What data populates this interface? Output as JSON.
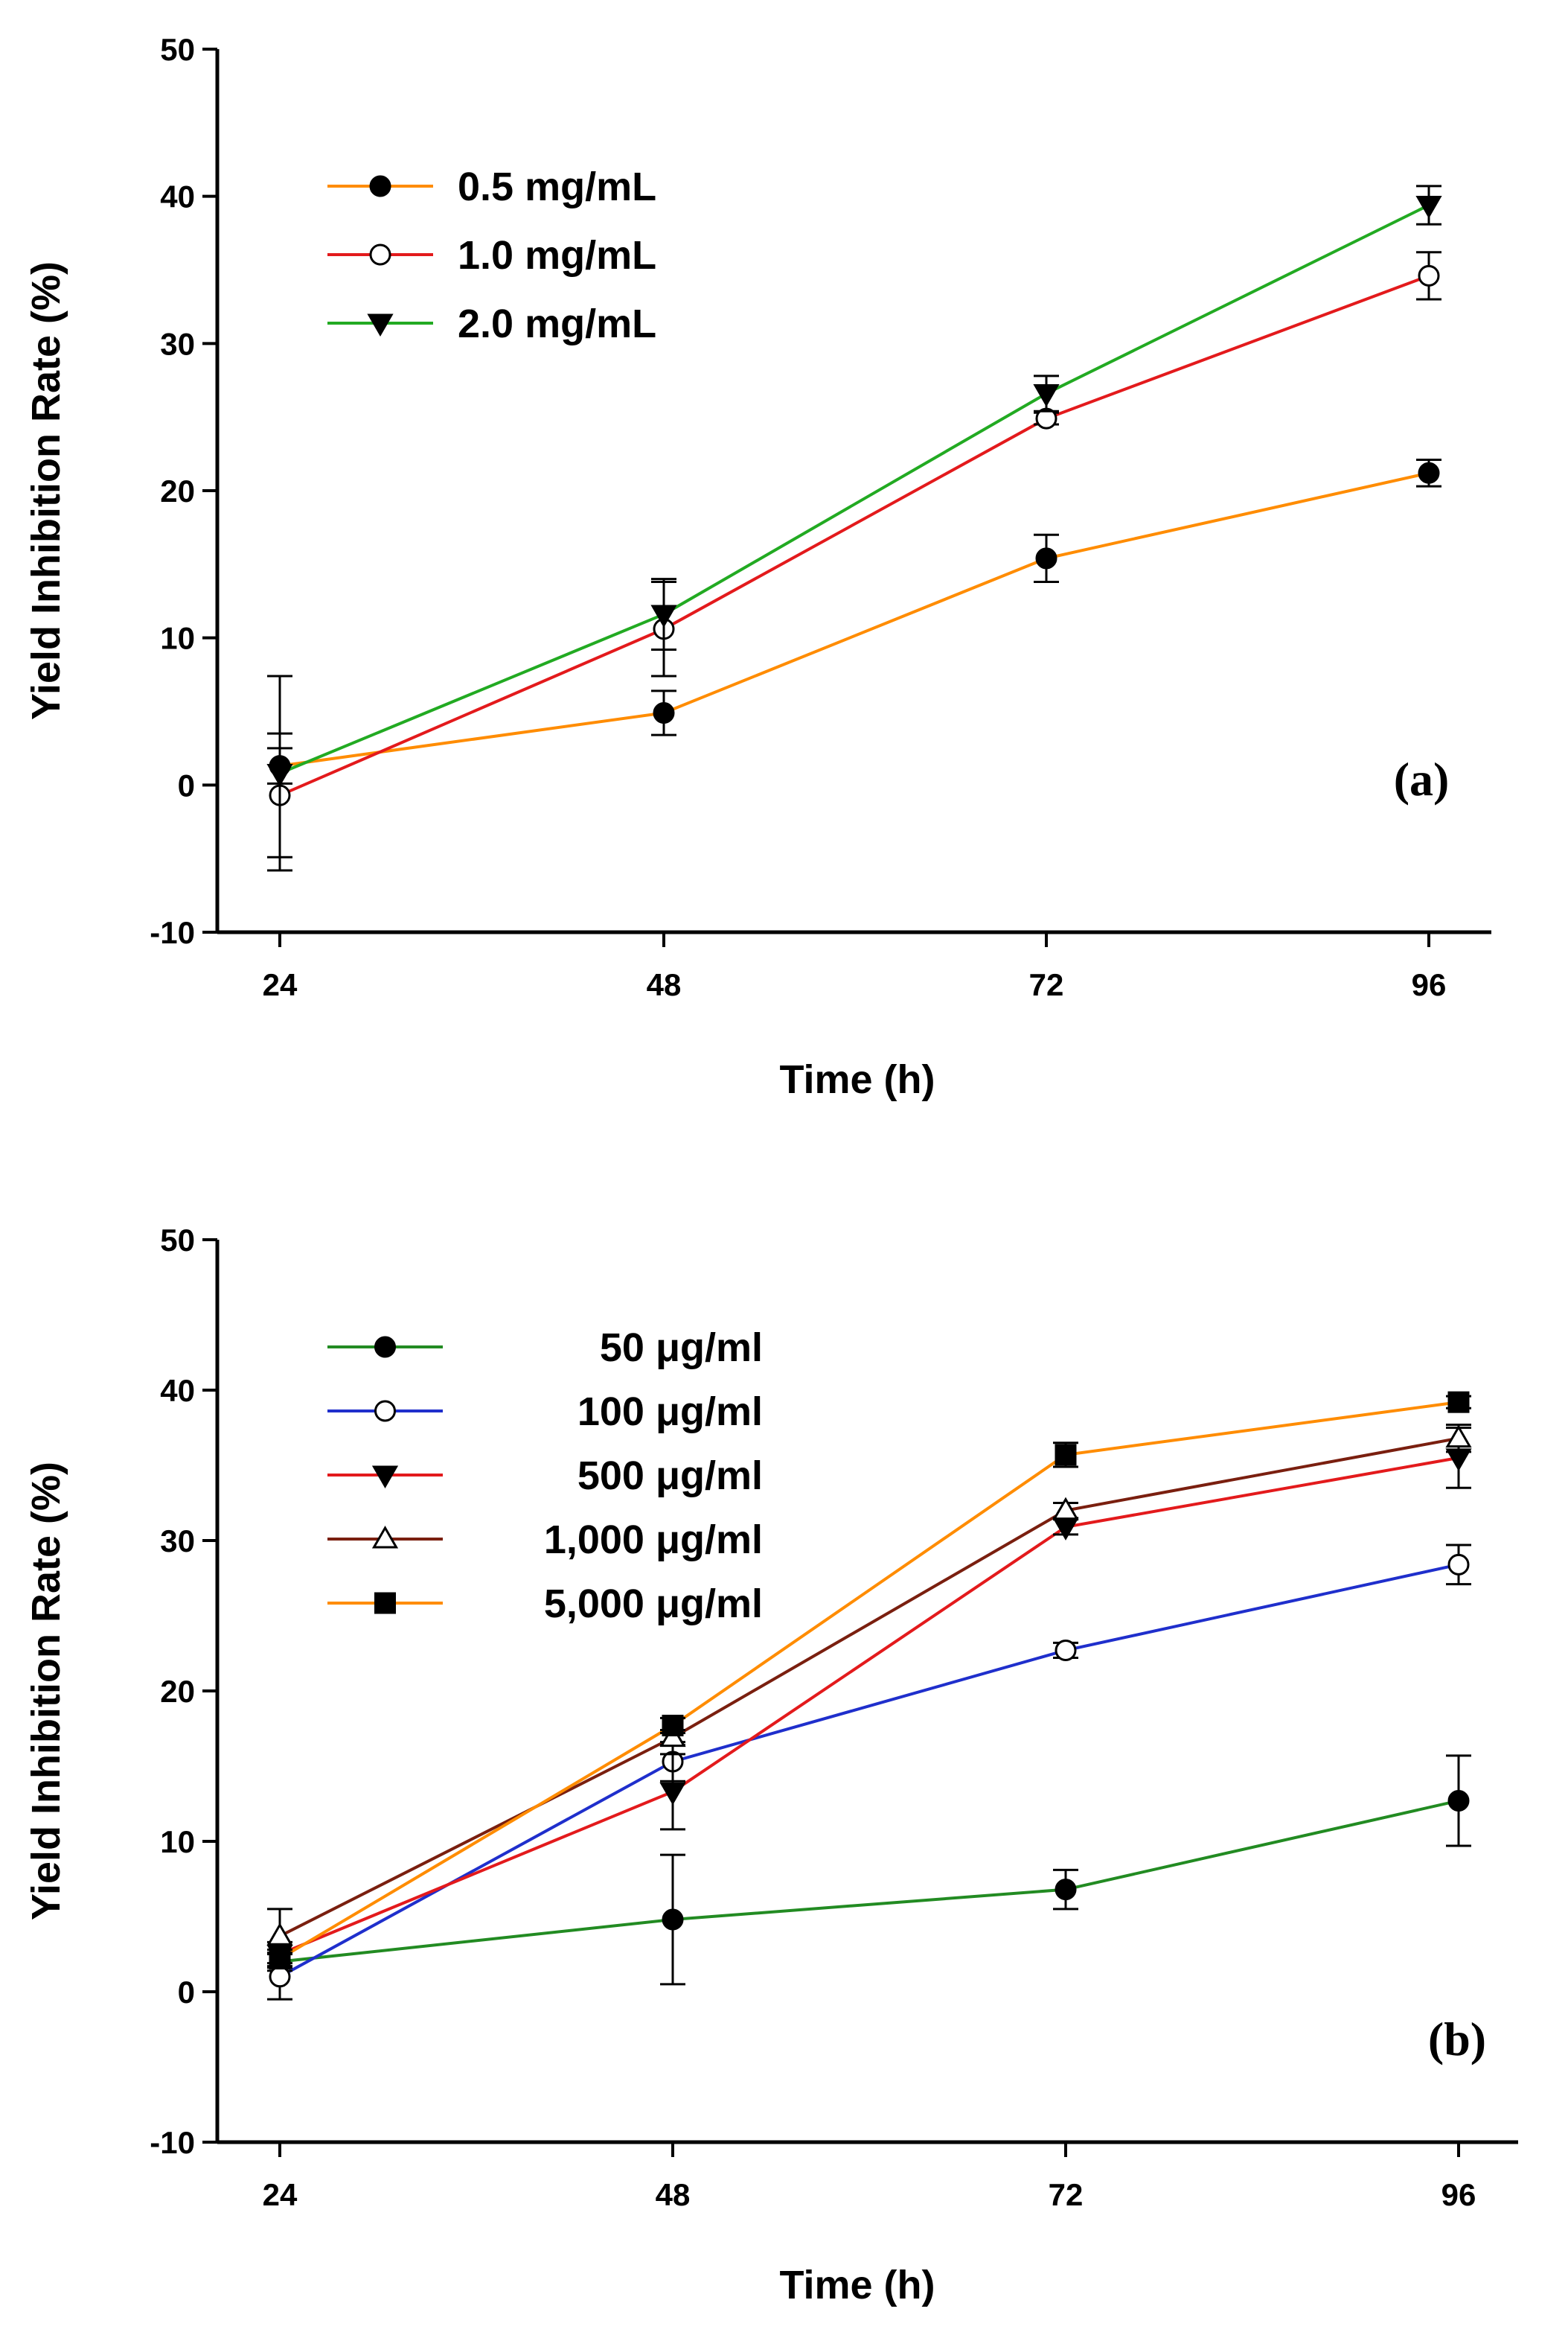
{
  "chart_data": [
    {
      "type": "line",
      "panel_label": "(a)",
      "xlabel": "Time (h)",
      "ylabel": "Yield Inhibition Rate (%)",
      "x": [
        24,
        48,
        72,
        96
      ],
      "x_tick_labels": [
        "24",
        "48",
        "72",
        "96"
      ],
      "ylim": [
        -10,
        50
      ],
      "y_ticks": [
        -10,
        0,
        10,
        20,
        30,
        40,
        50
      ],
      "y_tick_labels": [
        "-10",
        "0",
        "10",
        "20",
        "30",
        "40",
        "50"
      ],
      "legend_position": "top-left",
      "series": [
        {
          "name": "0.5 mg/mL",
          "color": "#ff8c00",
          "marker": "circle-filled",
          "values": [
            1.3,
            4.9,
            15.4,
            21.2
          ],
          "errors": [
            1.2,
            1.5,
            1.6,
            0.9
          ]
        },
        {
          "name": "1.0 mg/mL",
          "color": "#e31a1c",
          "marker": "circle-open",
          "values": [
            -0.7,
            10.6,
            24.9,
            34.6
          ],
          "errors": [
            4.2,
            3.2,
            0.4,
            1.6
          ]
        },
        {
          "name": "2.0 mg/mL",
          "color": "#22aa22",
          "marker": "triangle-down-filled",
          "values": [
            0.8,
            11.6,
            26.6,
            39.4
          ],
          "errors": [
            6.6,
            2.4,
            1.2,
            1.3
          ]
        }
      ]
    },
    {
      "type": "line",
      "panel_label": "(b)",
      "xlabel": "Time (h)",
      "ylabel": "Yield Inhibition Rate (%)",
      "x": [
        24,
        48,
        72,
        96
      ],
      "x_tick_labels": [
        "24",
        "48",
        "72",
        "96"
      ],
      "ylim": [
        -10,
        50
      ],
      "y_ticks": [
        -10,
        0,
        10,
        20,
        30,
        40,
        50
      ],
      "y_tick_labels": [
        "-10",
        "0",
        "10",
        "20",
        "30",
        "40",
        "50"
      ],
      "legend_position": "top-left",
      "series": [
        {
          "name": "50 μg/ml",
          "color": "#228b22",
          "marker": "circle-filled",
          "values": [
            2.0,
            4.8,
            6.8,
            12.7
          ],
          "errors": [
            0.6,
            4.3,
            1.3,
            3.0
          ]
        },
        {
          "name": "100 μg/ml",
          "color": "#1f2fcc",
          "marker": "circle-open",
          "values": [
            1.0,
            15.3,
            22.7,
            28.4
          ],
          "errors": [
            1.5,
            1.3,
            0.5,
            1.3
          ]
        },
        {
          "name": "500 μg/ml",
          "color": "#e31a1c",
          "marker": "triangle-down-filled",
          "values": [
            2.5,
            13.3,
            30.9,
            35.5
          ],
          "errors": [
            0.8,
            2.5,
            0.5,
            2.0
          ]
        },
        {
          "name": "1,000 μg/ml",
          "color": "#7a1f0f",
          "marker": "triangle-up-open",
          "values": [
            3.7,
            16.9,
            32.0,
            36.8
          ],
          "errors": [
            1.8,
            0.5,
            0.5,
            0.9
          ]
        },
        {
          "name": "5,000 μg/ml",
          "color": "#ff8c00",
          "marker": "square-filled",
          "values": [
            2.2,
            17.7,
            35.7,
            39.2
          ],
          "errors": [
            0.6,
            0.5,
            0.8,
            0.4
          ]
        }
      ]
    }
  ]
}
